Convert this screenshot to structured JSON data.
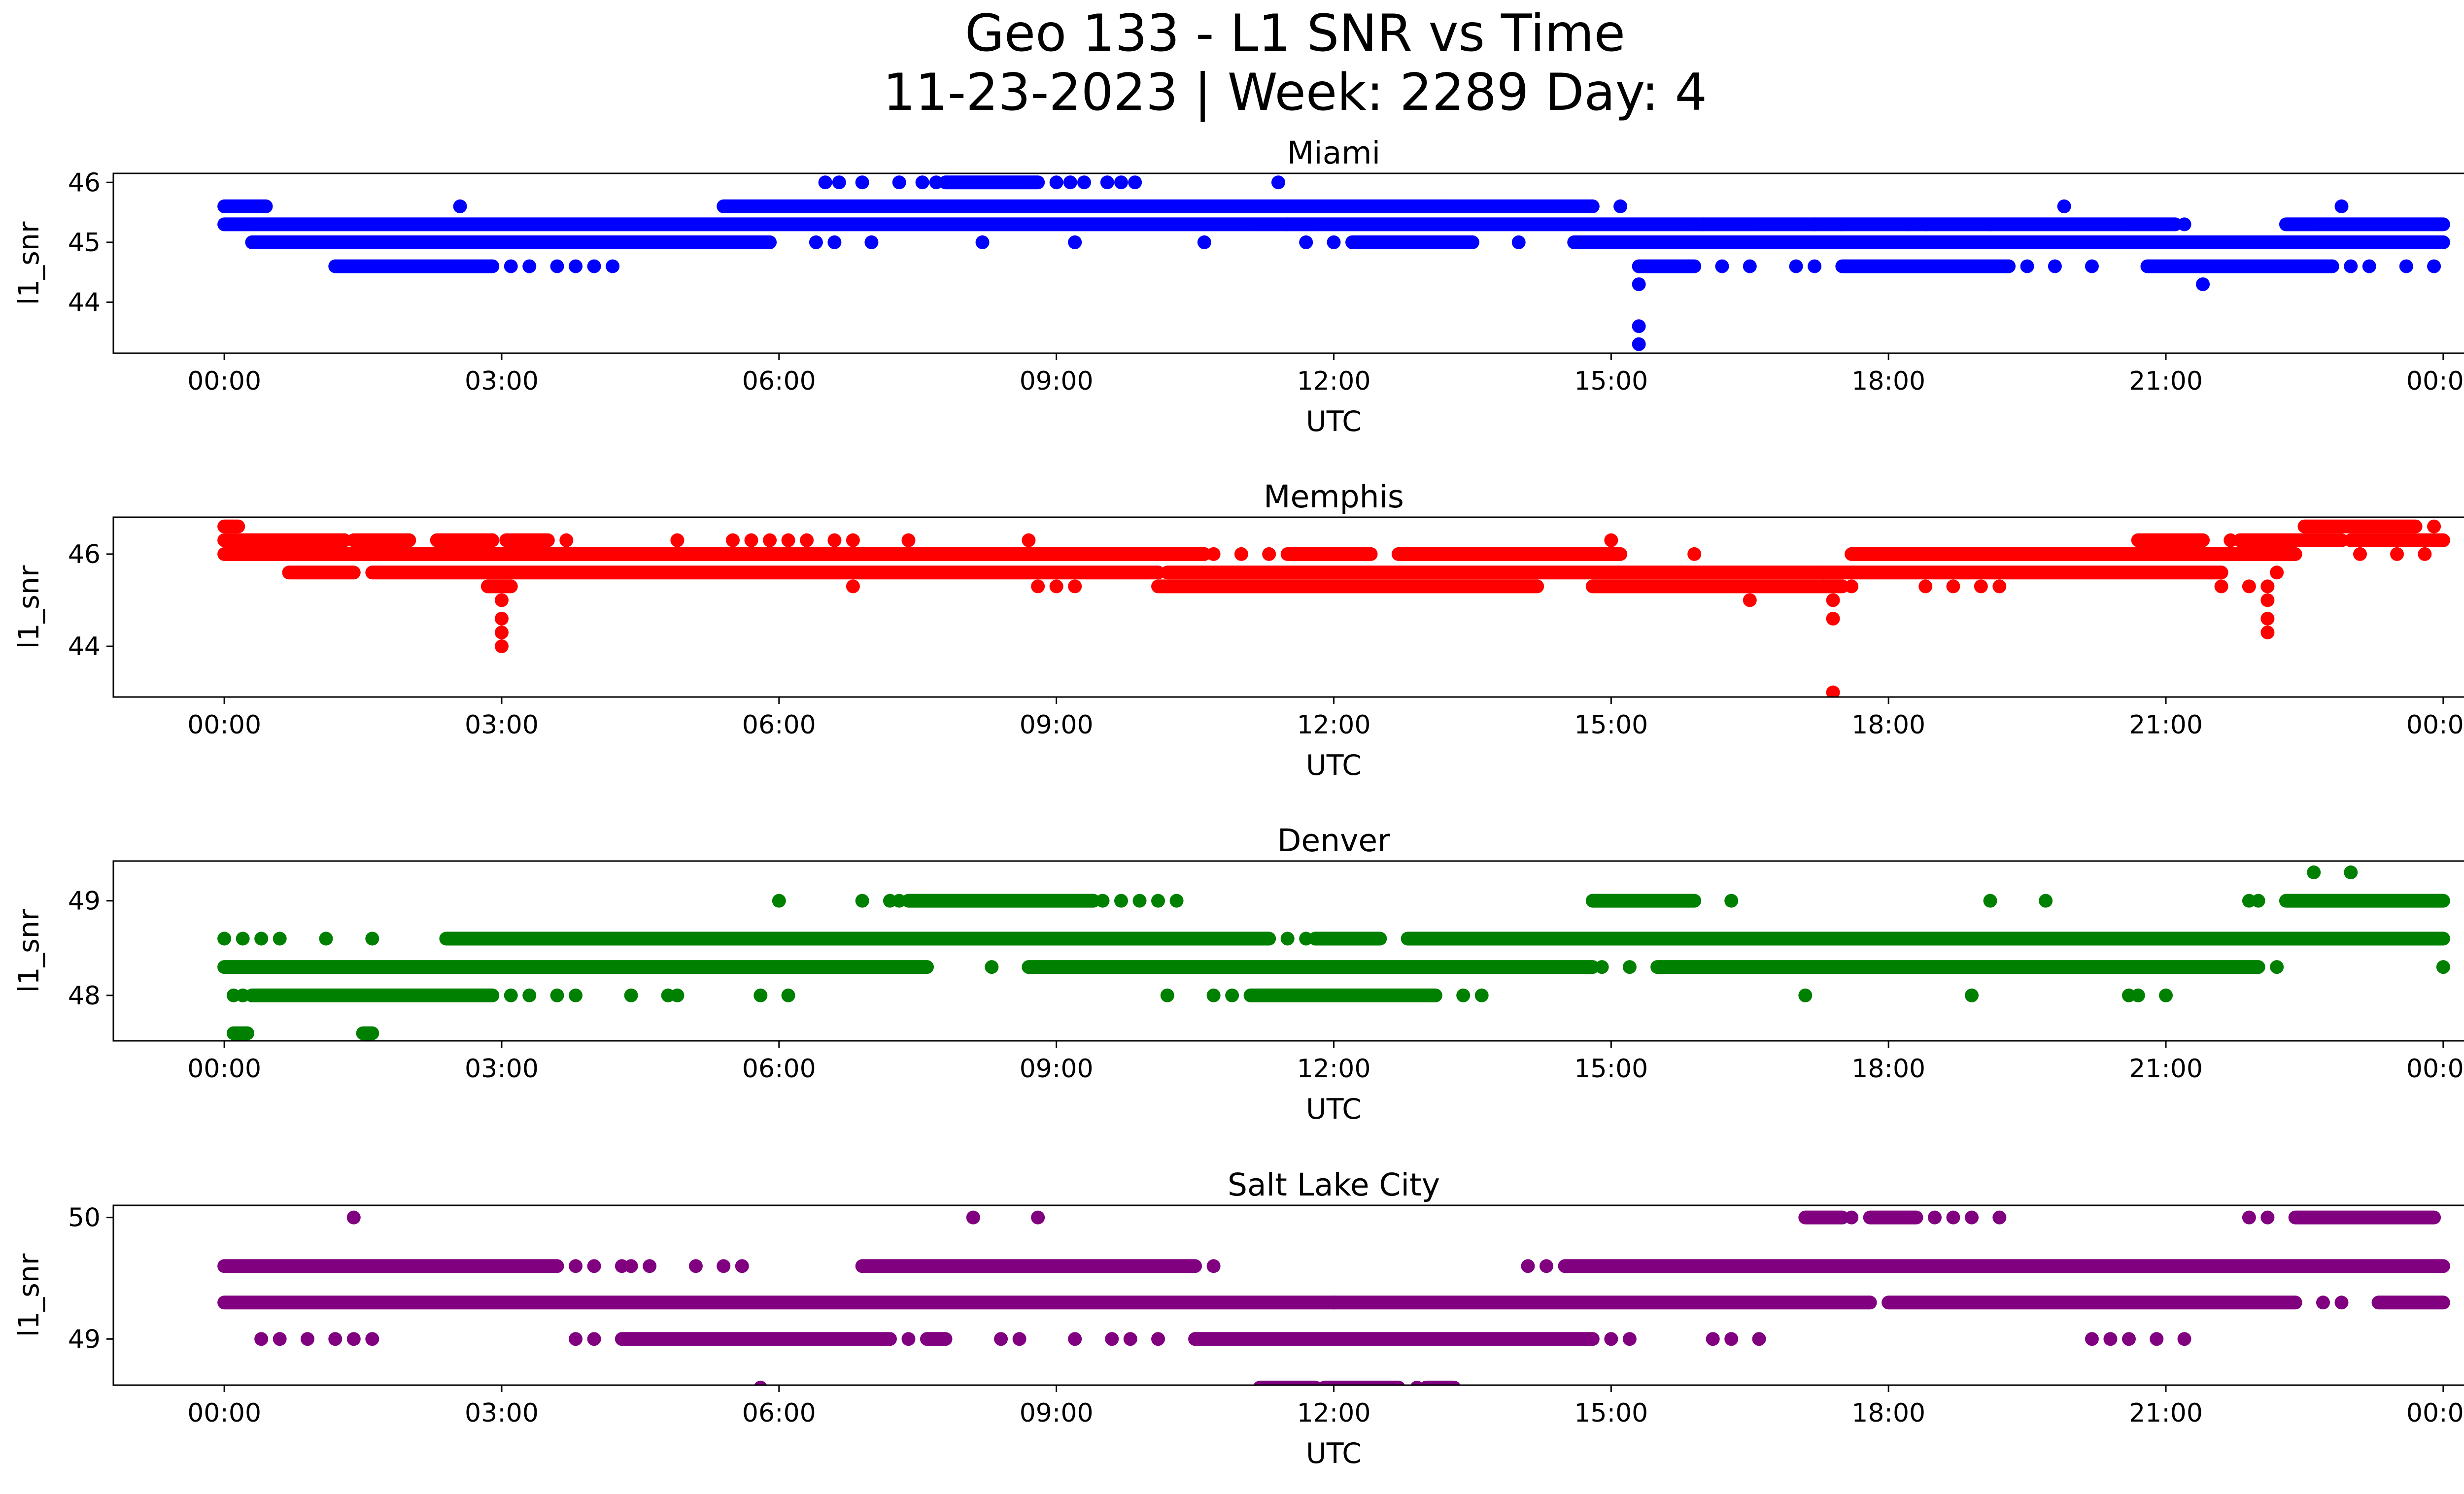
{
  "figure": {
    "title_line1": "Geo 133 - L1 SNR vs Time",
    "title_line2": "11-23-2023 | Week: 2289 Day: 4"
  },
  "chart_data": [
    {
      "type": "scatter",
      "title": "Miami",
      "xlabel": "UTC",
      "ylabel": "l1_snr",
      "color": "#0000ff",
      "x_ticks": [
        "00:00",
        "03:00",
        "06:00",
        "09:00",
        "12:00",
        "15:00",
        "18:00",
        "21:00",
        "00:00"
      ],
      "x_unit": "hours UTC (0 = 00:00, 24 = 00:00 next day)",
      "xlim": [
        -1.2,
        25.2
      ],
      "y_ticks": [
        44,
        45,
        46
      ],
      "ylim": [
        43.15,
        46.15
      ],
      "levels": [
        {
          "y": 45.6,
          "ranges": [
            [
              0,
              0.45
            ],
            [
              5.4,
              13.2
            ],
            [
              13.2,
              14.8
            ]
          ],
          "points": [
            2.55,
            15.1,
            19.9,
            22.9
          ]
        },
        {
          "y": 45.3,
          "ranges": [
            [
              0,
              11.5
            ],
            [
              11.5,
              16.0
            ],
            [
              16.0,
              21.1
            ],
            [
              22.3,
              24.0
            ]
          ],
          "points": [
            17.2,
            17.5,
            18.2,
            18.4,
            19.1,
            21.2
          ]
        },
        {
          "y": 45.0,
          "ranges": [
            [
              0.3,
              5.9
            ],
            [
              12.2,
              13.5
            ],
            [
              14.6,
              24.0
            ]
          ],
          "points": [
            6.4,
            6.6,
            7.0,
            8.2,
            9.2,
            10.6,
            11.7,
            12.0,
            14.0
          ]
        },
        {
          "y": 44.6,
          "ranges": [
            [
              1.2,
              2.9
            ],
            [
              15.3,
              15.9
            ],
            [
              17.5,
              19.3
            ],
            [
              20.8,
              22.8
            ]
          ],
          "points": [
            3.1,
            3.3,
            3.6,
            3.8,
            4.0,
            4.2,
            16.2,
            16.5,
            17.0,
            17.2,
            19.5,
            19.8,
            20.2,
            23.0,
            23.2,
            23.6,
            23.9
          ]
        },
        {
          "y": 46.0,
          "ranges": [
            [
              7.8,
              8.8
            ]
          ],
          "points": [
            6.5,
            6.65,
            6.9,
            7.3,
            7.55,
            7.7,
            9.0,
            9.15,
            9.3,
            9.55,
            9.7,
            9.85,
            11.4
          ]
        },
        {
          "y": 44.3,
          "ranges": [],
          "points": [
            15.3,
            21.4
          ]
        },
        {
          "y": 43.6,
          "ranges": [],
          "points": [
            15.3
          ]
        },
        {
          "y": 43.3,
          "ranges": [],
          "points": [
            15.3
          ]
        }
      ]
    },
    {
      "type": "scatter",
      "title": "Memphis",
      "xlabel": "UTC",
      "ylabel": "l1_snr",
      "color": "#ff0000",
      "x_ticks": [
        "00:00",
        "03:00",
        "06:00",
        "09:00",
        "12:00",
        "15:00",
        "18:00",
        "21:00",
        "00:00"
      ],
      "x_unit": "hours UTC (0 = 00:00, 24 = 00:00 next day)",
      "xlim": [
        -1.2,
        25.2
      ],
      "y_ticks": [
        44,
        46
      ],
      "ylim": [
        42.9,
        46.8
      ],
      "levels": [
        {
          "y": 46.6,
          "ranges": [
            [
              0,
              0.15
            ],
            [
              22.5,
              23.7
            ]
          ],
          "points": [
            23.9
          ]
        },
        {
          "y": 46.3,
          "ranges": [
            [
              0,
              1.3
            ],
            [
              1.4,
              2.0
            ],
            [
              2.3,
              2.9
            ],
            [
              3.05,
              3.5
            ],
            [
              20.7,
              21.4
            ],
            [
              21.8,
              22.9
            ],
            [
              23.0,
              24.0
            ]
          ],
          "points": [
            3.7,
            4.9,
            5.5,
            5.7,
            5.9,
            6.1,
            6.3,
            6.6,
            6.8,
            7.4,
            8.7,
            15.0,
            21.7
          ]
        },
        {
          "y": 46.0,
          "ranges": [
            [
              0,
              10.6
            ],
            [
              11.5,
              12.4
            ],
            [
              12.7,
              15.1
            ],
            [
              17.6,
              22.4
            ]
          ],
          "points": [
            10.7,
            11.0,
            11.3,
            15.9,
            23.1,
            23.5,
            23.8
          ]
        },
        {
          "y": 45.6,
          "ranges": [
            [
              0.7,
              1.4
            ],
            [
              1.6,
              10.1
            ],
            [
              10.2,
              17.3
            ],
            [
              17.3,
              21.6
            ]
          ],
          "points": [
            22.2
          ]
        },
        {
          "y": 45.3,
          "ranges": [
            [
              2.85,
              3.1
            ],
            [
              10.1,
              14.2
            ],
            [
              14.8,
              17.5
            ]
          ],
          "points": [
            6.8,
            8.8,
            9.0,
            9.2,
            17.6,
            18.4,
            18.7,
            19.0,
            19.2,
            21.6,
            21.9,
            22.1
          ]
        },
        {
          "y": 45.0,
          "ranges": [],
          "points": [
            3.0,
            16.5,
            17.4,
            22.1
          ]
        },
        {
          "y": 44.6,
          "ranges": [],
          "points": [
            3.0,
            17.4,
            22.1
          ]
        },
        {
          "y": 44.3,
          "ranges": [],
          "points": [
            3.0,
            22.1
          ]
        },
        {
          "y": 44.0,
          "ranges": [],
          "points": [
            3.0
          ]
        },
        {
          "y": 43.0,
          "ranges": [],
          "points": [
            17.4
          ]
        }
      ]
    },
    {
      "type": "scatter",
      "title": "Denver",
      "xlabel": "UTC",
      "ylabel": "l1_snr",
      "color": "#008000",
      "x_ticks": [
        "00:00",
        "03:00",
        "06:00",
        "09:00",
        "12:00",
        "15:00",
        "18:00",
        "21:00",
        "00:00"
      ],
      "x_unit": "hours UTC (0 = 00:00, 24 = 00:00 next day)",
      "xlim": [
        -1.2,
        25.2
      ],
      "y_ticks": [
        48,
        49
      ],
      "ylim": [
        47.52,
        49.42
      ],
      "levels": [
        {
          "y": 49.3,
          "ranges": [],
          "points": [
            22.6,
            23.0
          ]
        },
        {
          "y": 49.0,
          "ranges": [
            [
              7.4,
              9.4
            ],
            [
              14.8,
              15.9
            ],
            [
              22.3,
              24.0
            ]
          ],
          "points": [
            6.0,
            6.9,
            7.2,
            7.3,
            9.5,
            9.7,
            9.9,
            10.1,
            10.3,
            16.3,
            19.1,
            19.7,
            21.9,
            22.0
          ]
        },
        {
          "y": 48.6,
          "ranges": [
            [
              2.4,
              11.3
            ],
            [
              11.8,
              12.5
            ],
            [
              12.8,
              13.8
            ],
            [
              13.8,
              24.0
            ]
          ],
          "points": [
            0.0,
            0.2,
            0.4,
            0.6,
            1.1,
            1.6,
            11.5,
            11.7
          ]
        },
        {
          "y": 48.3,
          "ranges": [
            [
              0,
              7.6
            ],
            [
              8.7,
              14.8
            ],
            [
              15.5,
              22.0
            ]
          ],
          "points": [
            8.3,
            14.9,
            15.2,
            22.2,
            24.0
          ]
        },
        {
          "y": 48.0,
          "ranges": [
            [
              0.3,
              2.9
            ],
            [
              11.1,
              13.1
            ]
          ],
          "points": [
            0.1,
            0.2,
            3.1,
            3.3,
            3.6,
            3.8,
            4.4,
            4.8,
            4.9,
            5.8,
            6.1,
            10.2,
            10.7,
            10.9,
            13.4,
            13.6,
            17.1,
            18.9,
            20.6,
            20.7,
            21.0
          ]
        },
        {
          "y": 47.6,
          "ranges": [
            [
              0.1,
              0.25
            ],
            [
              1.5,
              1.6
            ]
          ],
          "points": []
        }
      ]
    },
    {
      "type": "scatter",
      "title": "Salt Lake City",
      "xlabel": "UTC",
      "ylabel": "l1_snr",
      "color": "#800080",
      "x_ticks": [
        "00:00",
        "03:00",
        "06:00",
        "09:00",
        "12:00",
        "15:00",
        "18:00",
        "21:00",
        "00:00"
      ],
      "x_unit": "hours UTC (0 = 00:00, 24 = 00:00 next day)",
      "xlim": [
        -1.2,
        25.2
      ],
      "y_ticks": [
        49,
        50
      ],
      "ylim": [
        48.62,
        50.1
      ],
      "levels": [
        {
          "y": 50.0,
          "ranges": [
            [
              17.1,
              17.5
            ],
            [
              17.8,
              18.3
            ],
            [
              22.4,
              23.9
            ]
          ],
          "points": [
            1.4,
            8.1,
            8.8,
            17.6,
            18.5,
            18.7,
            18.9,
            19.2,
            21.9,
            22.1
          ]
        },
        {
          "y": 49.6,
          "ranges": [
            [
              0,
              3.6
            ],
            [
              6.9,
              10.5
            ],
            [
              14.5,
              24.0
            ]
          ],
          "points": [
            3.8,
            4.0,
            4.3,
            4.4,
            4.6,
            5.1,
            5.4,
            5.6,
            10.7,
            14.1,
            14.3
          ]
        },
        {
          "y": 49.3,
          "ranges": [
            [
              0,
              12.0
            ],
            [
              12.0,
              17.8
            ],
            [
              18.0,
              22.4
            ],
            [
              23.3,
              24.0
            ]
          ],
          "points": [
            22.7,
            22.9
          ]
        },
        {
          "y": 49.0,
          "ranges": [
            [
              4.3,
              7.2
            ],
            [
              7.6,
              7.8
            ],
            [
              10.5,
              14.8
            ]
          ],
          "points": [
            0.4,
            0.6,
            0.9,
            1.2,
            1.4,
            1.6,
            3.8,
            4.0,
            7.4,
            8.4,
            8.6,
            9.2,
            9.6,
            9.8,
            10.1,
            15.0,
            15.2,
            16.1,
            16.3,
            16.6,
            20.2,
            20.4,
            20.6,
            20.9,
            21.2
          ]
        },
        {
          "y": 48.6,
          "ranges": [
            [
              11.2,
              11.8
            ],
            [
              11.9,
              12.7
            ],
            [
              13.0,
              13.3
            ]
          ],
          "points": [
            5.8,
            12.9
          ]
        }
      ]
    }
  ]
}
